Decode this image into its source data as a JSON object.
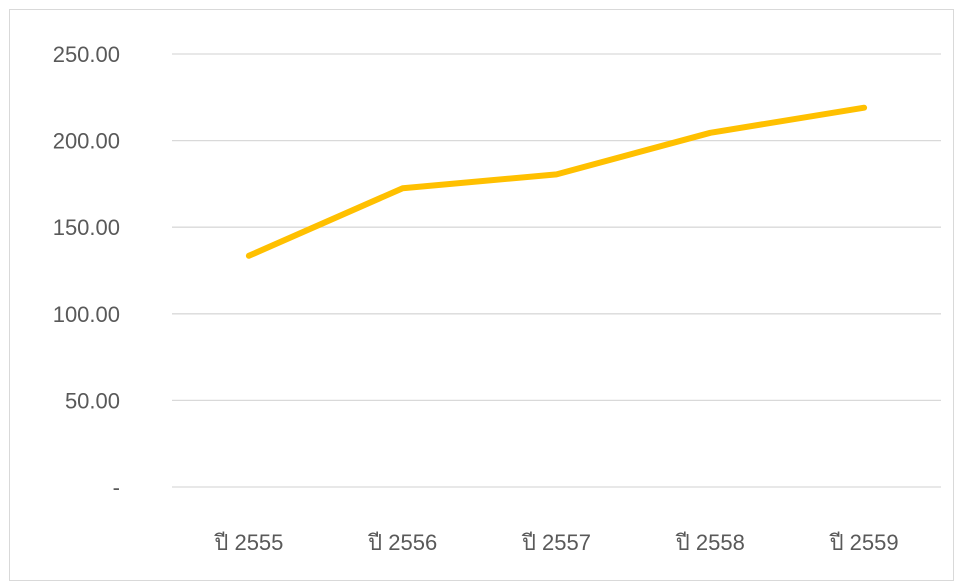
{
  "chart_data": {
    "type": "line",
    "title": "",
    "xlabel": "",
    "ylabel": "",
    "categories": [
      "ปี 2555",
      "ปี 2556",
      "ปี 2557",
      "ปี 2558",
      "ปี 2559"
    ],
    "series": [
      {
        "values": [
          133.5,
          172.5,
          180.5,
          204.5,
          219
        ],
        "color": "#ffc000"
      }
    ],
    "y_ticks": [
      {
        "value": 0,
        "label": "-"
      },
      {
        "value": 50,
        "label": "50.00"
      },
      {
        "value": 100,
        "label": "100.00"
      },
      {
        "value": 150,
        "label": "150.00"
      },
      {
        "value": 200,
        "label": "200.00"
      },
      {
        "value": 250,
        "label": "250.00"
      }
    ],
    "ylim": [
      0,
      250
    ],
    "grid": "horizontal",
    "legend": "none",
    "colors": {
      "gridline": "#d9d9d9",
      "tick_text": "#595959",
      "border": "#d9d9d9"
    }
  }
}
